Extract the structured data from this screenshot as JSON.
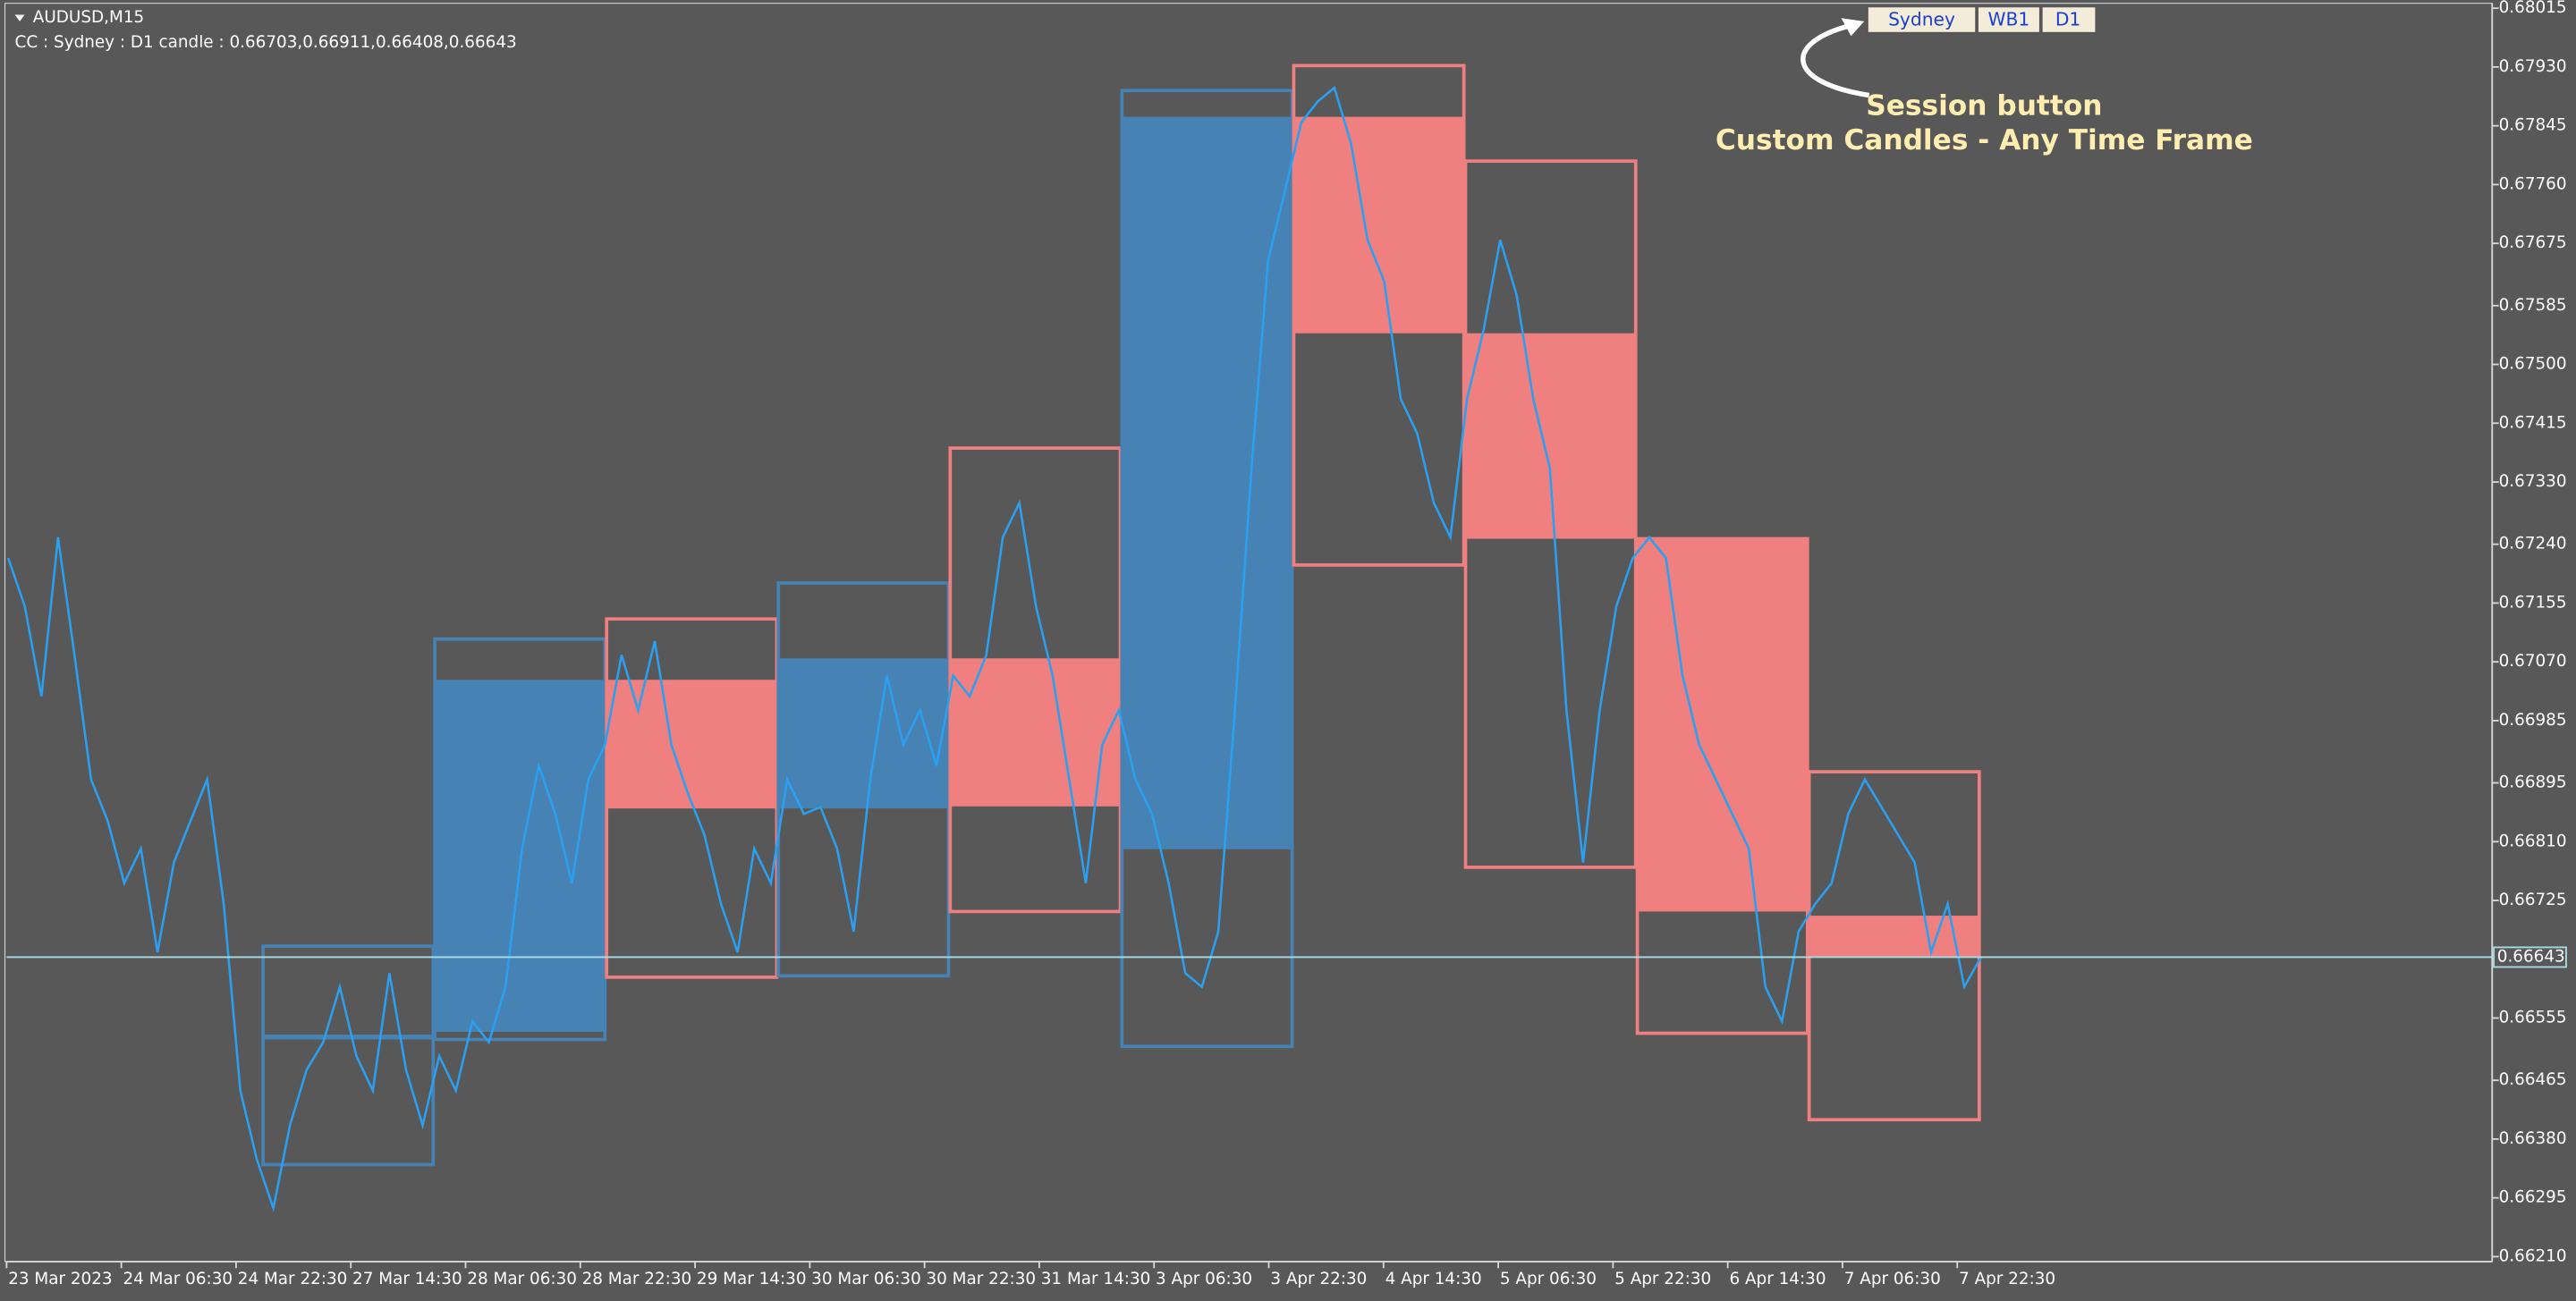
{
  "chart_data": {
    "type": "candlestick",
    "title": "AUDUSD,M15",
    "subtitle": "CC : Sydney : D1 candle : 0.66703,0.66911,0.66408,0.66643",
    "annotations": [
      "Session button",
      "Custom Candles - Any Time Frame"
    ],
    "buttons": [
      "Sydney",
      "WB1",
      "D1"
    ],
    "background": "#585858",
    "categories": [
      "23 Mar 2023",
      "24 Mar 06:30",
      "24 Mar 22:30",
      "27 Mar 14:30",
      "28 Mar 06:30",
      "28 Mar 22:30",
      "29 Mar 14:30",
      "30 Mar 06:30",
      "30 Mar 22:30",
      "31 Mar 14:30",
      "3 Apr 06:30",
      "3 Apr 22:30",
      "4 Apr 14:30",
      "5 Apr 06:30",
      "5 Apr 22:30",
      "6 Apr 14:30",
      "7 Apr 06:30",
      "7 Apr 22:30"
    ],
    "candles": {
      "open": [
        0.66524,
        0.66535,
        0.67044,
        0.66858,
        0.67075,
        0.66799,
        0.67858,
        0.67545,
        0.67246,
        0.66703
      ],
      "high": [
        0.66659,
        0.67103,
        0.67132,
        0.67184,
        0.67379,
        0.67896,
        0.67932,
        0.67794,
        0.67248,
        0.66911
      ],
      "low": [
        0.66343,
        0.66524,
        0.66614,
        0.66616,
        0.66709,
        0.66514,
        0.6721,
        0.66773,
        0.66533,
        0.66408
      ],
      "close": [
        0.66531,
        0.67044,
        0.66858,
        0.67075,
        0.66861,
        0.67858,
        0.67545,
        0.67248,
        0.66709,
        0.66643
      ],
      "up_color": "#4682b4",
      "down_color": "#f08080"
    },
    "price": {
      "color": "#2b9ff0",
      "values": [
        0.6722,
        0.6715,
        0.6702,
        0.6725,
        0.6708,
        0.669,
        0.6684,
        0.6675,
        0.668,
        0.6665,
        0.6678,
        0.6684,
        0.669,
        0.6672,
        0.6645,
        0.6635,
        0.6628,
        0.664,
        0.6648,
        0.6652,
        0.666,
        0.665,
        0.6645,
        0.6662,
        0.6648,
        0.664,
        0.665,
        0.6645,
        0.6655,
        0.6652,
        0.666,
        0.668,
        0.6692,
        0.6685,
        0.6675,
        0.669,
        0.6695,
        0.6708,
        0.67,
        0.671,
        0.6695,
        0.6688,
        0.6682,
        0.6672,
        0.6665,
        0.668,
        0.6675,
        0.669,
        0.6685,
        0.6686,
        0.668,
        0.6668,
        0.669,
        0.6705,
        0.6695,
        0.67,
        0.6692,
        0.6705,
        0.6702,
        0.6708,
        0.6725,
        0.673,
        0.6715,
        0.6705,
        0.669,
        0.6675,
        0.6695,
        0.67,
        0.669,
        0.6685,
        0.6675,
        0.6662,
        0.666,
        0.6668,
        0.67,
        0.6735,
        0.6765,
        0.6775,
        0.6785,
        0.6788,
        0.679,
        0.6782,
        0.6768,
        0.6762,
        0.6745,
        0.674,
        0.673,
        0.6725,
        0.6745,
        0.6755,
        0.6768,
        0.676,
        0.6745,
        0.6735,
        0.67,
        0.6678,
        0.67,
        0.6715,
        0.6722,
        0.6725,
        0.6722,
        0.6705,
        0.6695,
        0.669,
        0.6685,
        0.668,
        0.666,
        0.6655,
        0.6668,
        0.6672,
        0.6675,
        0.6685,
        0.669,
        0.6686,
        0.6682,
        0.6678,
        0.6665,
        0.6672,
        0.666,
        0.66643
      ]
    },
    "current_price": 0.66643,
    "current_color": "#a8dde6",
    "ylim": [
      0.6621,
      0.68015
    ],
    "yticks": [
      0.68015,
      {
        "value": 0.6793,
        "label": "0.67930"
      },
      0.67845,
      {
        "value": 0.6776,
        "label": "0.67760"
      },
      0.67675,
      0.67585,
      {
        "value": 0.675,
        "label": "0.67500"
      },
      0.67415,
      {
        "value": 0.6733,
        "label": "0.67330"
      },
      {
        "value": 0.6724,
        "label": "0.67240"
      },
      0.67155,
      {
        "value": 0.6707,
        "label": "0.67070"
      },
      0.66985,
      0.66895,
      {
        "value": 0.6681,
        "label": "0.66810"
      },
      0.66725,
      0.66555,
      0.66465,
      {
        "value": 0.6638,
        "label": "0.66380"
      },
      0.66295,
      {
        "value": 0.6621,
        "label": "0.66210"
      }
    ]
  }
}
